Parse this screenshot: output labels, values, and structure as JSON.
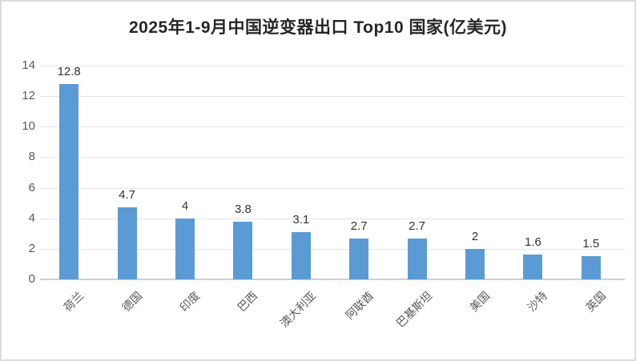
{
  "title": "2025年1-9月中国逆变器出口 Top10 国家(亿美元)",
  "chart_data": {
    "type": "bar",
    "title": "2025年1-9月中国逆变器出口 Top10 国家(亿美元)",
    "categories": [
      "荷兰",
      "德国",
      "印度",
      "巴西",
      "澳大利亚",
      "阿联酋",
      "巴基斯坦",
      "美国",
      "沙特",
      "英国"
    ],
    "values": [
      12.8,
      4.7,
      4,
      3.8,
      3.1,
      2.7,
      2.7,
      2,
      1.6,
      1.5
    ],
    "xlabel": "",
    "ylabel": "",
    "ylim": [
      0,
      14
    ],
    "yticks": [
      0,
      2,
      4,
      6,
      8,
      10,
      12,
      14
    ],
    "grid": true,
    "legend_position": "none",
    "data_labels_shown": true,
    "xtick_rotation_deg": 45,
    "colors": {
      "bar_fill": "#5B9BD5",
      "gridline": "#e4e4e4",
      "axis_line": "#cfcfcf",
      "title_text": "#262626",
      "value_label_text": "#333333",
      "tick_label_text": "#595959",
      "background": "#ffffff",
      "frame_border": "#dcdcdc"
    }
  }
}
